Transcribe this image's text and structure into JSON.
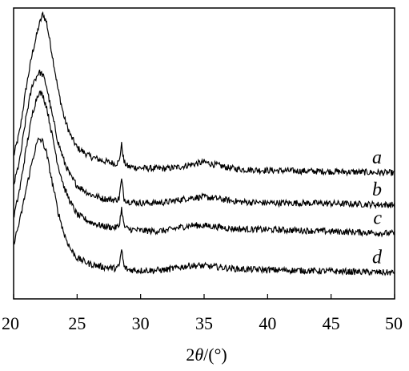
{
  "chart_data": {
    "type": "line",
    "title": "",
    "xlabel_prefix": "2",
    "xlabel_theta": "θ",
    "xlabel_suffix": "/(°)",
    "ylabel": "",
    "xlim": [
      20,
      50
    ],
    "xticks": [
      "20",
      "25",
      "30",
      "35",
      "40",
      "45",
      "50"
    ],
    "y_ticks_labeled": false,
    "grid": false,
    "legend": "inline labels at right end of each curve",
    "line_color": "#000000",
    "series": [
      {
        "name": "a",
        "points": [
          [
            20,
            49
          ],
          [
            20.5,
            58
          ],
          [
            21,
            73
          ],
          [
            21.5,
            85
          ],
          [
            22,
            94
          ],
          [
            22.3,
            98
          ],
          [
            22.6,
            95
          ],
          [
            23,
            85
          ],
          [
            23.5,
            72
          ],
          [
            24,
            62
          ],
          [
            24.5,
            56
          ],
          [
            25,
            52
          ],
          [
            26,
            49
          ],
          [
            27,
            47.5
          ],
          [
            28,
            46.5
          ],
          [
            28.3,
            47
          ],
          [
            28.5,
            53
          ],
          [
            28.7,
            47
          ],
          [
            29,
            45.5
          ],
          [
            30,
            45
          ],
          [
            31,
            44.8
          ],
          [
            32,
            44.8
          ],
          [
            33,
            45.3
          ],
          [
            34,
            46.2
          ],
          [
            35,
            47
          ],
          [
            36,
            46
          ],
          [
            37,
            45
          ],
          [
            38,
            44.5
          ],
          [
            40,
            44.2
          ],
          [
            42,
            44
          ],
          [
            45,
            43.8
          ],
          [
            48,
            43.5
          ],
          [
            50,
            43.3
          ]
        ]
      },
      {
        "name": "b",
        "points": [
          [
            20,
            39
          ],
          [
            20.5,
            48
          ],
          [
            21,
            63
          ],
          [
            21.5,
            74
          ],
          [
            22,
            78
          ],
          [
            22.3,
            77
          ],
          [
            22.6,
            73
          ],
          [
            23,
            64
          ],
          [
            23.5,
            54
          ],
          [
            24,
            47
          ],
          [
            24.5,
            42
          ],
          [
            25,
            39
          ],
          [
            26,
            36
          ],
          [
            27,
            34.5
          ],
          [
            28,
            34
          ],
          [
            28.3,
            34.5
          ],
          [
            28.5,
            41
          ],
          [
            28.7,
            34.5
          ],
          [
            29,
            33.5
          ],
          [
            30,
            33
          ],
          [
            31,
            33
          ],
          [
            32,
            33.2
          ],
          [
            33,
            34
          ],
          [
            34,
            34.8
          ],
          [
            35,
            35
          ],
          [
            36,
            34.5
          ],
          [
            37,
            33.8
          ],
          [
            38,
            33.3
          ],
          [
            40,
            33
          ],
          [
            42,
            33
          ],
          [
            45,
            32.8
          ],
          [
            48,
            32.5
          ],
          [
            50,
            32.3
          ]
        ]
      },
      {
        "name": "c",
        "points": [
          [
            20,
            28
          ],
          [
            20.5,
            38
          ],
          [
            21,
            52
          ],
          [
            21.5,
            64
          ],
          [
            21.8,
            69
          ],
          [
            22,
            71
          ],
          [
            22.3,
            70
          ],
          [
            22.6,
            66
          ],
          [
            23,
            57
          ],
          [
            23.5,
            46
          ],
          [
            24,
            38
          ],
          [
            24.5,
            33
          ],
          [
            25,
            29
          ],
          [
            26,
            26.5
          ],
          [
            27,
            25
          ],
          [
            28,
            24.5
          ],
          [
            28.3,
            25
          ],
          [
            28.5,
            31
          ],
          [
            28.7,
            25
          ],
          [
            29,
            24
          ],
          [
            30,
            23.5
          ],
          [
            31,
            23.3
          ],
          [
            32,
            23.5
          ],
          [
            33,
            24.5
          ],
          [
            34,
            25.3
          ],
          [
            35,
            25.2
          ],
          [
            36,
            24.8
          ],
          [
            37,
            24.2
          ],
          [
            38,
            24
          ],
          [
            40,
            23.8
          ],
          [
            42,
            23.6
          ],
          [
            45,
            23.2
          ],
          [
            48,
            22.8
          ],
          [
            50,
            22.5
          ]
        ]
      },
      {
        "name": "d",
        "points": [
          [
            20,
            19
          ],
          [
            20.5,
            27
          ],
          [
            21,
            38
          ],
          [
            21.5,
            48
          ],
          [
            21.8,
            53
          ],
          [
            22,
            55
          ],
          [
            22.3,
            54
          ],
          [
            22.6,
            50
          ],
          [
            23,
            41
          ],
          [
            23.5,
            30
          ],
          [
            24,
            22
          ],
          [
            24.5,
            17
          ],
          [
            25,
            14
          ],
          [
            26,
            12
          ],
          [
            27,
            11
          ],
          [
            28,
            10.5
          ],
          [
            28.3,
            11
          ],
          [
            28.5,
            17
          ],
          [
            28.7,
            11
          ],
          [
            29,
            10
          ],
          [
            30,
            9.8
          ],
          [
            31,
            9.8
          ],
          [
            32,
            10
          ],
          [
            33,
            10.8
          ],
          [
            34,
            11.5
          ],
          [
            35,
            11.3
          ],
          [
            36,
            11
          ],
          [
            37,
            10.5
          ],
          [
            38,
            10.2
          ],
          [
            40,
            10
          ],
          [
            42,
            9.8
          ],
          [
            45,
            9.5
          ],
          [
            48,
            9.2
          ],
          [
            50,
            9
          ]
        ]
      }
    ]
  }
}
